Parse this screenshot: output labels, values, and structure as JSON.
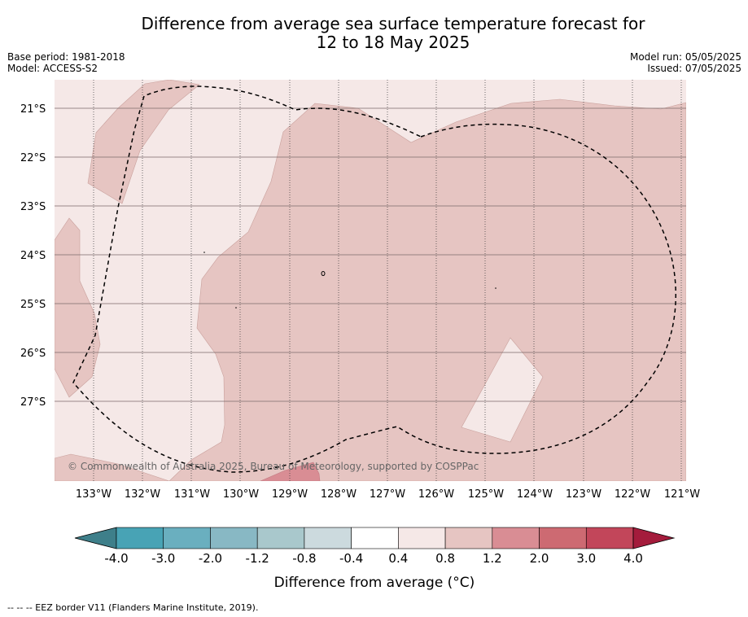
{
  "title": {
    "line1": "Difference from average sea surface temperature forecast for",
    "line2": "12 to 18 May 2025"
  },
  "meta_left": {
    "base_period": "Base period: 1981-2018",
    "model": "Model: ACCESS-S2"
  },
  "meta_right": {
    "model_run": "Model run: 05/05/2025",
    "issued": "Issued: 07/05/2025"
  },
  "map": {
    "lat_labels": [
      "21°S",
      "22°S",
      "23°S",
      "24°S",
      "25°S",
      "26°S",
      "27°S"
    ],
    "lon_labels": [
      "133°W",
      "132°W",
      "131°W",
      "130°W",
      "129°W",
      "128°W",
      "127°W",
      "126°W",
      "125°W",
      "124°W",
      "123°W",
      "122°W",
      "121°W"
    ],
    "copyright": "© Commonwealth of Australia 2025, Bureau of Meteorology, supported by COSPPac",
    "colors": {
      "band_0_4_0_8": "#f5e8e7",
      "band_0_8_1_2": "#e6c5c2",
      "band_1_2_2_0": "#d98d94"
    }
  },
  "colorbar": {
    "labels": [
      "-4.0",
      "-3.0",
      "-2.0",
      "-1.2",
      "-0.8",
      "-0.4",
      "0.4",
      "0.8",
      "1.2",
      "2.0",
      "3.0",
      "4.0"
    ],
    "colors": [
      "#48a3b5",
      "#6aafbf",
      "#88b8c4",
      "#a9c8cc",
      "#ccdade",
      "#ffffff",
      "#f5e8e7",
      "#e6c5c2",
      "#d98d94",
      "#cd6a72",
      "#c2465a"
    ],
    "under_color": "#3e7f8a",
    "over_color": "#a41c3c",
    "title": "Difference from average (°C)"
  },
  "footer": "-- -- -- EEZ border V11 (Flanders Marine Institute, 2019)."
}
